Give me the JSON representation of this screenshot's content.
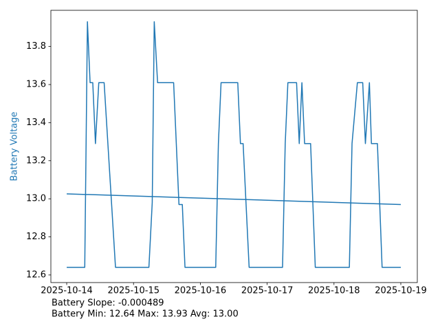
{
  "chart_data": {
    "type": "line",
    "ylabel": "Battery Voltage",
    "ylabel_color": "#1f77b4",
    "series": [
      {
        "color": "#1f77b4",
        "x": [
          0,
          0.27,
          0.31,
          0.35,
          0.39,
          0.43,
          0.48,
          0.56,
          0.73,
          1.23,
          1.28,
          1.31,
          1.36,
          1.6,
          1.68,
          1.73,
          1.77,
          2.23,
          2.27,
          2.31,
          2.56,
          2.6,
          2.64,
          2.73,
          3.23,
          3.27,
          3.31,
          3.44,
          3.48,
          3.52,
          3.56,
          3.65,
          3.72,
          4.23,
          4.27,
          4.35,
          4.43,
          4.47,
          4.53,
          4.56,
          4.65,
          4.72,
          5.0
        ],
        "values": [
          12.64,
          12.64,
          13.93,
          13.61,
          13.61,
          13.29,
          13.61,
          13.61,
          12.64,
          12.64,
          12.98,
          13.93,
          13.61,
          13.61,
          12.97,
          12.97,
          12.64,
          12.64,
          13.29,
          13.61,
          13.61,
          13.29,
          13.29,
          12.64,
          12.64,
          13.29,
          13.61,
          13.61,
          13.29,
          13.61,
          13.29,
          13.29,
          12.64,
          12.64,
          13.29,
          13.61,
          13.61,
          13.29,
          13.61,
          13.29,
          13.29,
          12.64,
          12.64
        ]
      },
      {
        "color": "#1f77b4",
        "x": [
          0,
          5.0
        ],
        "values": [
          13.026,
          12.97
        ]
      }
    ],
    "xlim": [
      -0.237,
      5.247
    ],
    "ylim": [
      12.56,
      13.99
    ],
    "xticks": [
      {
        "value": 0,
        "label": "2025-10-14"
      },
      {
        "value": 1,
        "label": "2025-10-15"
      },
      {
        "value": 2,
        "label": "2025-10-16"
      },
      {
        "value": 3,
        "label": "2025-10-17"
      },
      {
        "value": 4,
        "label": "2025-10-18"
      },
      {
        "value": 5,
        "label": "2025-10-19"
      }
    ],
    "yticks": [
      12.6,
      12.8,
      {
        "value": 13,
        "label": "13.0"
      },
      13.2,
      13.4,
      13.6,
      13.8
    ],
    "grid": false,
    "annotations": [
      "Battery Slope: -0.000489",
      "Battery Min: 12.64 Max: 13.93 Avg: 13.00"
    ]
  }
}
